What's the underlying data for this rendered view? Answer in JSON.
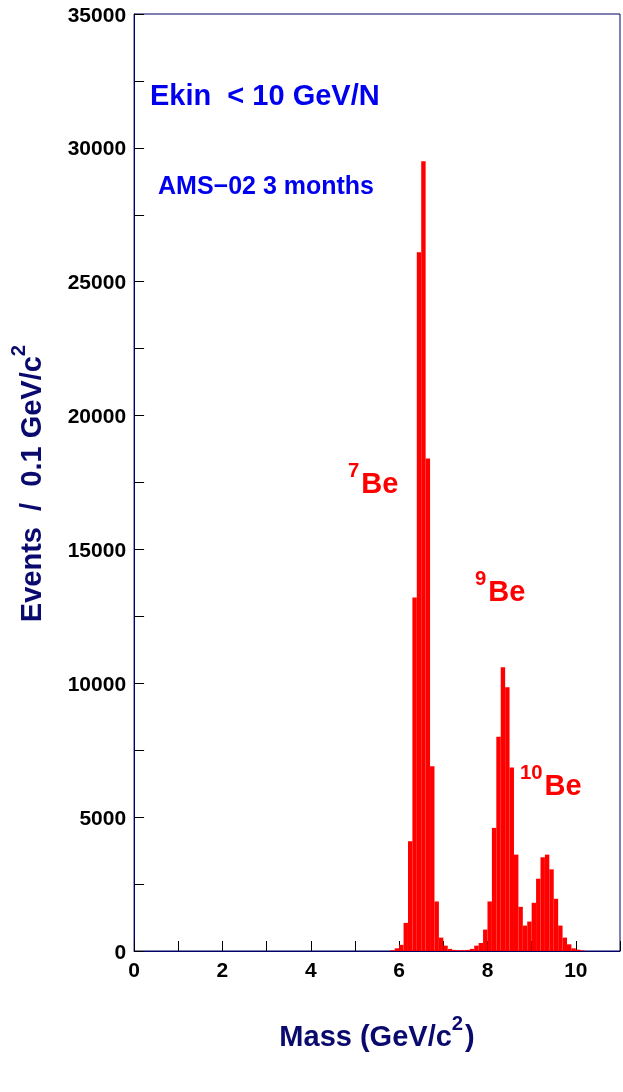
{
  "chart_data": {
    "type": "histogram",
    "xlabel": "Mass (GeV/c$^{2}$)",
    "ylabel": "Events  /  0.1 GeV/c$^{2}$",
    "color": "#ff0000",
    "bins": [
      5.8,
      5.9,
      6.0,
      6.1,
      6.2,
      6.3,
      6.4,
      6.5,
      6.6,
      6.7,
      6.8,
      6.9,
      7.0,
      7.1,
      7.2,
      7.3,
      7.4,
      7.5,
      7.6,
      7.7,
      7.8,
      7.9,
      8.0,
      8.1,
      8.2,
      8.3,
      8.4,
      8.5,
      8.6,
      8.7,
      8.8,
      8.9,
      9.0,
      9.1,
      9.2,
      9.3,
      9.4,
      9.5,
      9.6,
      9.7,
      9.8,
      9.9,
      10.0,
      10.1,
      10.2
    ],
    "values": [
      30,
      100,
      230,
      1050,
      4100,
      13200,
      26100,
      29500,
      18400,
      6900,
      1850,
      500,
      200,
      80,
      40,
      30,
      30,
      40,
      80,
      200,
      300,
      800,
      1850,
      4600,
      8000,
      10600,
      9850,
      6850,
      3600,
      1650,
      950,
      1100,
      1800,
      2700,
      3500,
      3600,
      3050,
      1950,
      950,
      500,
      250,
      100,
      50,
      20
    ],
    "xlim": [
      0,
      11
    ],
    "xticks": [
      0,
      {
        "value": 1,
        "label": null
      },
      2,
      {
        "value": 3,
        "label": null
      },
      4,
      {
        "value": 5,
        "label": null
      },
      6,
      {
        "value": 7,
        "label": null
      },
      8,
      {
        "value": 9,
        "label": null
      },
      10,
      {
        "value": 11,
        "label": null
      }
    ],
    "ylim": [
      0,
      35000
    ],
    "yticks": [
      0,
      {
        "value": 2500,
        "label": null
      },
      5000,
      {
        "value": 7500,
        "label": null
      },
      10000,
      {
        "value": 12500,
        "label": null
      },
      15000,
      {
        "value": 17500,
        "label": null
      },
      20000,
      {
        "value": 22500,
        "label": null
      },
      25000,
      {
        "value": 27500,
        "label": null
      },
      30000,
      {
        "value": 32500,
        "label": null
      },
      35000
    ],
    "grid": false,
    "annotations": [
      "Ekin  < 10 GeV/N",
      "AMS−02 3 months",
      "$^{7}$Be",
      "$^{9}$Be",
      "$^{10}$Be"
    ]
  }
}
